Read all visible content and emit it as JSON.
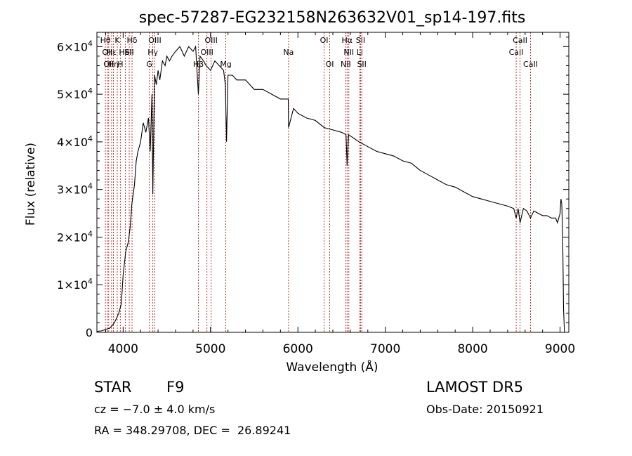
{
  "chart_data": {
    "type": "line",
    "title": "spec-57287-EG232158N263632V01_sp14-197.fits",
    "xlabel": "Wavelength (Å)",
    "ylabel": "Flux (relative)",
    "xlim": [
      3700,
      9100
    ],
    "ylim": [
      0,
      63000
    ],
    "x_ticks": [
      4000,
      5000,
      6000,
      7000,
      8000,
      9000
    ],
    "x_tick_labels": [
      "4000",
      "5000",
      "6000",
      "7000",
      "8000",
      "9000"
    ],
    "y_ticks": [
      0,
      10000,
      20000,
      30000,
      40000,
      50000,
      60000
    ],
    "y_tick_labels": [
      {
        "mant": "0",
        "exp": ""
      },
      {
        "mant": "1×10",
        "exp": "4"
      },
      {
        "mant": "2×10",
        "exp": "4"
      },
      {
        "mant": "3×10",
        "exp": "4"
      },
      {
        "mant": "4×10",
        "exp": "4"
      },
      {
        "mant": "5×10",
        "exp": "4"
      },
      {
        "mant": "6×10",
        "exp": "4"
      }
    ],
    "spectrum": {
      "x": [
        3700,
        3750,
        3800,
        3850,
        3900,
        3950,
        3980,
        4000,
        4030,
        4060,
        4080,
        4100,
        4130,
        4150,
        4170,
        4200,
        4230,
        4260,
        4290,
        4310,
        4330,
        4340,
        4360,
        4380,
        4400,
        4420,
        4450,
        4480,
        4500,
        4530,
        4560,
        4600,
        4650,
        4700,
        4750,
        4800,
        4830,
        4861,
        4880,
        4920,
        4950,
        5000,
        5050,
        5100,
        5150,
        5170,
        5183,
        5200,
        5250,
        5300,
        5400,
        5500,
        5600,
        5700,
        5800,
        5890,
        5893,
        5950,
        6000,
        6100,
        6200,
        6300,
        6400,
        6500,
        6550,
        6563,
        6580,
        6620,
        6700,
        6800,
        6900,
        7000,
        7100,
        7200,
        7300,
        7400,
        7500,
        7600,
        7700,
        7800,
        7900,
        8000,
        8100,
        8200,
        8300,
        8400,
        8470,
        8498,
        8520,
        8542,
        8580,
        8620,
        8662,
        8700,
        8750,
        8800,
        8850,
        8900,
        8950,
        8970,
        9000,
        9010,
        9020,
        9030,
        9040,
        9050,
        9060
      ],
      "y": [
        200,
        300,
        600,
        900,
        2000,
        4000,
        6000,
        12000,
        17000,
        19000,
        22000,
        27000,
        31000,
        36000,
        38000,
        40000,
        44000,
        42000,
        45000,
        38000,
        50000,
        29000,
        54000,
        52000,
        55000,
        53000,
        57000,
        56000,
        58000,
        57000,
        58000,
        59000,
        60000,
        58000,
        60000,
        59000,
        60000,
        50000,
        58000,
        57000,
        56000,
        55000,
        57000,
        56000,
        55000,
        52000,
        40000,
        54000,
        54000,
        53000,
        53000,
        51000,
        51000,
        50000,
        49000,
        49000,
        43000,
        47000,
        46000,
        45000,
        44500,
        43000,
        42500,
        42000,
        41500,
        35000,
        41500,
        41000,
        40000,
        39000,
        38000,
        37500,
        37000,
        36000,
        35500,
        34000,
        33000,
        32000,
        31000,
        30500,
        29500,
        28500,
        28000,
        27500,
        27000,
        26500,
        26000,
        24000,
        26000,
        23000,
        26000,
        25500,
        24000,
        25500,
        25000,
        24500,
        24500,
        24000,
        24000,
        23000,
        25000,
        28000,
        27000,
        20000,
        5000,
        0,
        0
      ]
    },
    "lines": [
      {
        "x": 3797,
        "label": "Hθ",
        "row": 1
      },
      {
        "x": 3820,
        "label": "OII",
        "row": 2
      },
      {
        "x": 3835,
        "label": "OII",
        "row": 3
      },
      {
        "x": 3868,
        "label": "Hε",
        "row": 2
      },
      {
        "x": 3889,
        "label": "Hη",
        "row": 3
      },
      {
        "x": 3933,
        "label": "K",
        "row": 1
      },
      {
        "x": 3968,
        "label": "H",
        "row": 3
      },
      {
        "x": 4026,
        "label": "HeI",
        "row": 2
      },
      {
        "x": 4070,
        "label": "SII",
        "row": 2
      },
      {
        "x": 4102,
        "label": "Hδ",
        "row": 1
      },
      {
        "x": 4300,
        "label": "G",
        "row": 3
      },
      {
        "x": 4340,
        "label": "Hγ",
        "row": 2
      },
      {
        "x": 4363,
        "label": "OIII",
        "row": 1
      },
      {
        "x": 4861,
        "label": "Hβ",
        "row": 3
      },
      {
        "x": 4959,
        "label": "OIII",
        "row": 2
      },
      {
        "x": 5007,
        "label": "OIII",
        "row": 1
      },
      {
        "x": 5175,
        "label": "Mg",
        "row": 3
      },
      {
        "x": 5893,
        "label": "Na",
        "row": 2
      },
      {
        "x": 6300,
        "label": "OI",
        "row": 1
      },
      {
        "x": 6364,
        "label": "OI",
        "row": 3
      },
      {
        "x": 6548,
        "label": "NII",
        "row": 3
      },
      {
        "x": 6563,
        "label": "Hα",
        "row": 1
      },
      {
        "x": 6583,
        "label": "NII",
        "row": 2
      },
      {
        "x": 6707,
        "label": "Li",
        "row": 2
      },
      {
        "x": 6717,
        "label": "SII",
        "row": 1
      },
      {
        "x": 6731,
        "label": "SII",
        "row": 3
      },
      {
        "x": 8498,
        "label": "CaII",
        "row": 2
      },
      {
        "x": 8542,
        "label": "CaII",
        "row": 1
      },
      {
        "x": 8662,
        "label": "CaII",
        "row": 3
      }
    ]
  },
  "info": {
    "class_label": "STAR",
    "subclass": "F9",
    "survey": "LAMOST DR5",
    "cz": "cz = −7.0 ± 4.0 km/s",
    "obs_date": "Obs-Date: 20150921",
    "coords": "RA = 348.29708, DEC =  26.89241"
  }
}
